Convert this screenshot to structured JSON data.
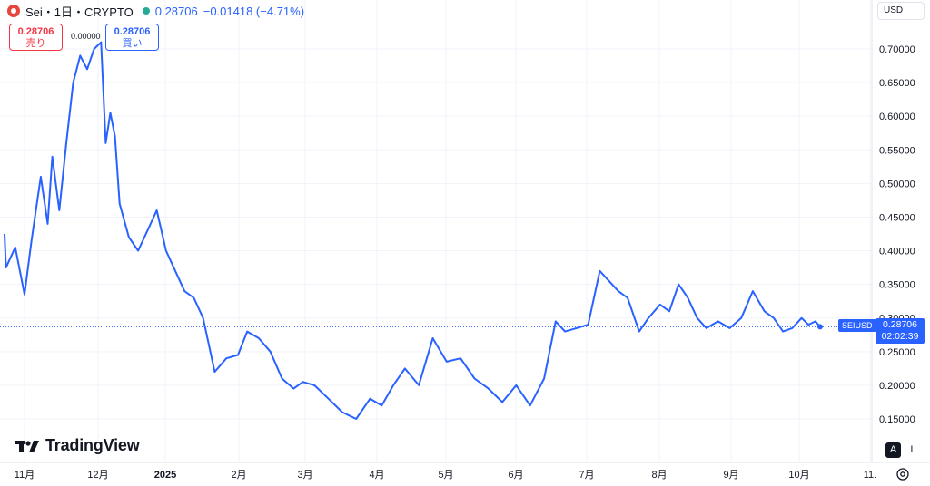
{
  "header": {
    "symbol": "Sei・1日・CRYPTO",
    "price": "0.28706",
    "change": "−0.01418 (−4.71%)"
  },
  "trade": {
    "sell_price": "0.28706",
    "sell_label": "売り",
    "spread": "0.00000",
    "buy_price": "0.28706",
    "buy_label": "買い"
  },
  "currency": "USD",
  "logo_text": "TradingView",
  "scale_buttons": {
    "auto": "A",
    "log": "L"
  },
  "price_tag": {
    "symbol": "SEIUSD",
    "price": "0.28706",
    "countdown": "02:02:39"
  },
  "colors": {
    "line": "#2962ff",
    "grid": "#f0f3fa",
    "accent": "#2962ff",
    "sell": "#f23645"
  },
  "chart_data": {
    "type": "line",
    "ylim": [
      0.1,
      0.75
    ],
    "y_ticks": [
      "0.15000",
      "0.20000",
      "0.25000",
      "0.30000",
      "0.35000",
      "0.40000",
      "0.45000",
      "0.50000",
      "0.55000",
      "0.60000",
      "0.65000",
      "0.70000"
    ],
    "x_ticks": [
      "11月",
      "12月",
      "2025",
      "2月",
      "3月",
      "4月",
      "5月",
      "6月",
      "7月",
      "8月",
      "9月",
      "10月",
      "11."
    ],
    "last_price": 0.28706,
    "grid": true,
    "series": [
      {
        "x": [
          "2024-10-20",
          "2024-10-24",
          "2024-10-28",
          "2024-11-01",
          "2024-11-04",
          "2024-11-08",
          "2024-11-11",
          "2024-11-13",
          "2024-11-16",
          "2024-11-19",
          "2024-11-22",
          "2024-11-25",
          "2024-11-28",
          "2024-12-01",
          "2024-12-04",
          "2024-12-06",
          "2024-12-08",
          "2024-12-10",
          "2024-12-12",
          "2024-12-16",
          "2024-12-20",
          "2024-12-24",
          "2024-12-28",
          "2025-01-01",
          "2025-01-05",
          "2025-01-09",
          "2025-01-13",
          "2025-01-17",
          "2025-01-22",
          "2025-01-27",
          "2025-02-01",
          "2025-02-05",
          "2025-02-10",
          "2025-02-15",
          "2025-02-20",
          "2025-02-25",
          "2025-03-01",
          "2025-03-06",
          "2025-03-12",
          "2025-03-18",
          "2025-03-24",
          "2025-03-30",
          "2025-04-04",
          "2025-04-09",
          "2025-04-14",
          "2025-04-20",
          "2025-04-26",
          "2025-05-02",
          "2025-05-08",
          "2025-05-14",
          "2025-05-20",
          "2025-05-26",
          "2025-06-01",
          "2025-06-07",
          "2025-06-13",
          "2025-06-18",
          "2025-06-22",
          "2025-06-27",
          "2025-07-02",
          "2025-07-07",
          "2025-07-11",
          "2025-07-15",
          "2025-07-19",
          "2025-07-24",
          "2025-07-28",
          "2025-08-02",
          "2025-08-06",
          "2025-08-10",
          "2025-08-14",
          "2025-08-18",
          "2025-08-22",
          "2025-08-27",
          "2025-09-01",
          "2025-09-06",
          "2025-09-11",
          "2025-09-16",
          "2025-09-20",
          "2025-09-24",
          "2025-09-28",
          "2025-10-02",
          "2025-10-05",
          "2025-10-08",
          "2025-10-10"
        ],
        "y": [
          0.425,
          0.375,
          0.405,
          0.335,
          0.415,
          0.51,
          0.44,
          0.54,
          0.46,
          0.56,
          0.65,
          0.69,
          0.67,
          0.7,
          0.71,
          0.56,
          0.605,
          0.57,
          0.47,
          0.42,
          0.4,
          0.43,
          0.46,
          0.4,
          0.37,
          0.34,
          0.33,
          0.3,
          0.22,
          0.24,
          0.245,
          0.28,
          0.27,
          0.25,
          0.21,
          0.195,
          0.205,
          0.2,
          0.18,
          0.16,
          0.15,
          0.18,
          0.17,
          0.2,
          0.225,
          0.2,
          0.27,
          0.235,
          0.24,
          0.21,
          0.195,
          0.175,
          0.2,
          0.17,
          0.21,
          0.295,
          0.28,
          0.285,
          0.29,
          0.37,
          0.355,
          0.34,
          0.33,
          0.28,
          0.3,
          0.32,
          0.31,
          0.35,
          0.33,
          0.3,
          0.285,
          0.295,
          0.285,
          0.3,
          0.34,
          0.31,
          0.3,
          0.28,
          0.285,
          0.3,
          0.29,
          0.295,
          0.287
        ]
      }
    ]
  }
}
